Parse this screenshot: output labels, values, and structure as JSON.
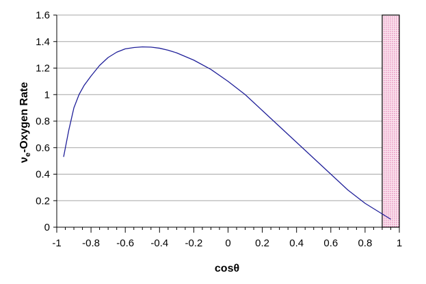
{
  "chart_data": {
    "type": "line",
    "title": "",
    "xlabel": "cosθ",
    "ylabel": {
      "prefix": "ν",
      "subscript": "e",
      "suffix": "-Oxygen Rate"
    },
    "xlim": [
      -1,
      1
    ],
    "ylim": [
      0,
      1.6
    ],
    "x_ticks": [
      -1,
      -0.8,
      -0.6,
      -0.4,
      -0.2,
      0,
      0.2,
      0.4,
      0.6,
      0.8,
      1
    ],
    "x_tick_labels": [
      "-1",
      "-0.8",
      "-0.6",
      "-0.4",
      "-0.2",
      "0",
      "0.2",
      "0.4",
      "0.6",
      "0.8",
      "1"
    ],
    "y_ticks": [
      0,
      0.2,
      0.4,
      0.6,
      0.8,
      1,
      1.2,
      1.4,
      1.6
    ],
    "y_tick_labels": [
      "0",
      "0.2",
      "0.4",
      "0.6",
      "0.8",
      "1",
      "1.2",
      "1.4",
      "1.6"
    ],
    "grid": "horizontal",
    "legend": "none",
    "series": [
      {
        "color": "#1f1f99",
        "x": [
          -0.96,
          -0.93,
          -0.9,
          -0.87,
          -0.84,
          -0.8,
          -0.75,
          -0.7,
          -0.65,
          -0.6,
          -0.55,
          -0.5,
          -0.45,
          -0.4,
          -0.35,
          -0.3,
          -0.2,
          -0.1,
          0.0,
          0.1,
          0.2,
          0.3,
          0.4,
          0.5,
          0.6,
          0.7,
          0.8,
          0.9,
          0.95
        ],
        "y": [
          0.53,
          0.73,
          0.9,
          1.0,
          1.07,
          1.14,
          1.22,
          1.28,
          1.32,
          1.345,
          1.355,
          1.36,
          1.358,
          1.35,
          1.335,
          1.315,
          1.26,
          1.19,
          1.1,
          1.0,
          0.88,
          0.76,
          0.64,
          0.52,
          0.4,
          0.28,
          0.18,
          0.1,
          0.06
        ]
      }
    ],
    "highlight_region": {
      "x_range": [
        0.9,
        1.0
      ],
      "y_range": [
        0,
        1.6
      ],
      "fill": "#f4c6dd",
      "stroke": "#000000"
    }
  }
}
